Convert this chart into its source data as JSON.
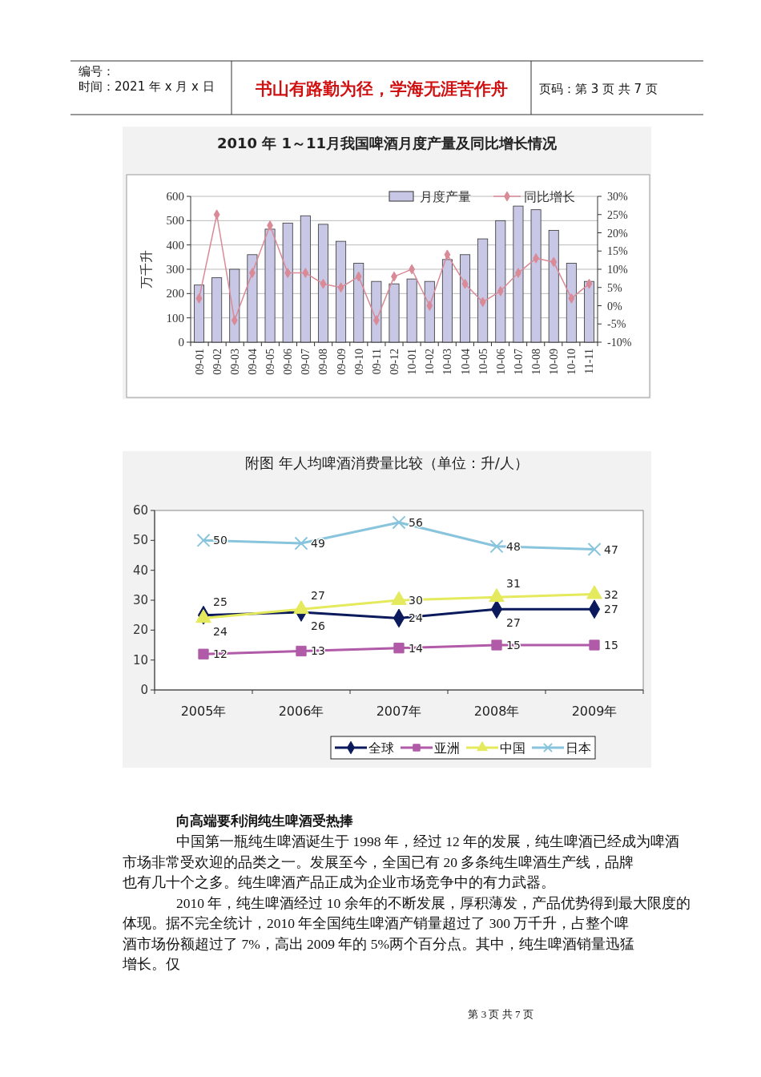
{
  "chart_data": [
    {
      "type": "bar",
      "title": "2010 年 1～11月我国啤酒月度产量及同比增长情况",
      "ylabel": "万千升",
      "categories": [
        "09-01",
        "09-02",
        "09-03",
        "09-04",
        "09-05",
        "09-06",
        "09-07",
        "09-08",
        "09-09",
        "09-10",
        "09-11",
        "09-12",
        "10-01",
        "10-02",
        "10-03",
        "10-04",
        "10-05",
        "10-06",
        "10-07",
        "10-08",
        "10-09",
        "10-10",
        "11-11"
      ],
      "series": [
        {
          "name": "月度产量",
          "color": "#c8c8e6",
          "values": [
            235,
            265,
            300,
            360,
            465,
            490,
            520,
            485,
            415,
            325,
            250,
            240,
            260,
            250,
            340,
            360,
            425,
            500,
            560,
            545,
            460,
            325,
            250
          ]
        },
        {
          "name": "同比增长",
          "type": "line",
          "axis": "y2",
          "color": "#d98a96",
          "marker": "diamond",
          "values": [
            2,
            25,
            -4,
            9,
            22,
            9,
            9,
            6,
            5,
            8,
            -4,
            8,
            10,
            0,
            14,
            6,
            1,
            4,
            9,
            13,
            12,
            2,
            6
          ]
        }
      ],
      "ylim": [
        0,
        600
      ],
      "yticks": [
        0,
        100,
        200,
        300,
        400,
        500,
        600
      ],
      "y2lim": [
        -10,
        30
      ],
      "y2ticks": [
        {
          "value": -10,
          "label": "-10%"
        },
        {
          "value": -5,
          "label": "-5%"
        },
        {
          "value": 0,
          "label": "0%"
        },
        {
          "value": 5,
          "label": "5%"
        },
        {
          "value": 10,
          "label": "10%"
        },
        {
          "value": 15,
          "label": "15%"
        },
        {
          "value": 20,
          "label": "20%"
        },
        {
          "value": 25,
          "label": "25%"
        },
        {
          "value": 30,
          "label": "30%"
        }
      ],
      "grid": "y",
      "legend": "top right",
      "annotations": [
        "编号：",
        "时间：2021 年 x 月 x 日",
        "书山有路勤为径，学海无涯苦作舟",
        "页码：第 3 页 共 7 页"
      ]
    },
    {
      "type": "line",
      "title": "附图 年人均啤酒消费量比较（单位：升/人）",
      "categories": [
        "2005年",
        "2006年",
        "2007年",
        "2008年",
        "2009年"
      ],
      "series": [
        {
          "name": "全球",
          "color": "#0a1a5c",
          "marker": "diamond",
          "values": [
            25,
            26,
            24,
            27,
            27
          ]
        },
        {
          "name": "亚洲",
          "color": "#b05aa8",
          "marker": "square",
          "values": [
            12,
            13,
            14,
            15,
            15
          ]
        },
        {
          "name": "中国",
          "color": "#e4ea5c",
          "marker": "triangle",
          "values": [
            24,
            27,
            30,
            31,
            32
          ]
        },
        {
          "name": "日本",
          "color": "#88c4dc",
          "marker": "cross",
          "values": [
            50,
            49,
            56,
            48,
            47
          ]
        }
      ],
      "ylim": [
        0,
        60
      ],
      "yticks": [
        0,
        10,
        20,
        30,
        40,
        50,
        60
      ],
      "data_labels": true,
      "legend": "bottom",
      "annotations": [
        "向高端要利润纯生啤酒受热捧",
        "中国第一瓶纯生啤酒诞生于 1998 年，经过 12 年的发展，纯生啤酒已经成为啤酒市场非常受欢迎的品类之一。发展至今，全国已有 20 多条纯生啤酒生产线，品牌也有几十个之多。纯生啤酒产品正成为企业市场竞争中的有力武器。",
        "2010 年，纯生啤酒经过 10 余年的不断发展，厚积薄发，产品优势得到最大限度的体现。据不完全统计，2010 年全国纯生啤酒产销量超过了 300 万千升，占整个啤酒市场份额超过了 7%，高出 2009 年的 5%两个百分点。其中，纯生啤酒销量迅猛增长。仅",
        "第 3 页 共 7 页"
      ]
    }
  ]
}
